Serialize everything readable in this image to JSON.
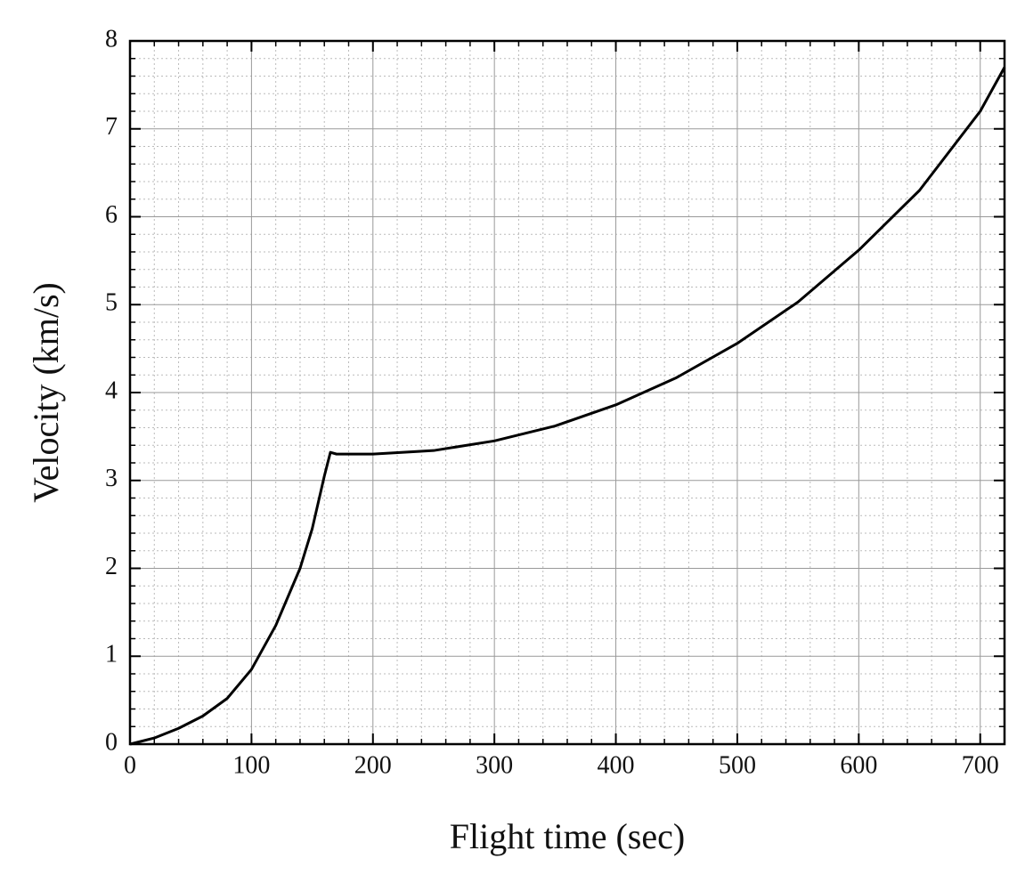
{
  "chart_data": {
    "type": "line",
    "xlabel": "Flight time (sec)",
    "ylabel": "Velocity (km/s)",
    "x": [
      0,
      20,
      40,
      60,
      80,
      100,
      120,
      140,
      150,
      160,
      165,
      170,
      200,
      250,
      300,
      350,
      400,
      450,
      500,
      550,
      600,
      650,
      700,
      720
    ],
    "values": [
      0,
      0.07,
      0.18,
      0.32,
      0.52,
      0.85,
      1.35,
      2.0,
      2.45,
      3.05,
      3.32,
      3.3,
      3.3,
      3.34,
      3.45,
      3.62,
      3.86,
      4.17,
      4.56,
      5.03,
      5.62,
      6.3,
      7.2,
      7.7
    ],
    "color": "#000000",
    "xlim": [
      0,
      720
    ],
    "xticks": [
      0,
      100,
      200,
      300,
      400,
      500,
      600,
      700
    ],
    "ylim": [
      0,
      8
    ],
    "yticks": [
      0,
      1,
      2,
      3,
      4,
      5,
      6,
      7,
      8
    ],
    "grid": true
  }
}
